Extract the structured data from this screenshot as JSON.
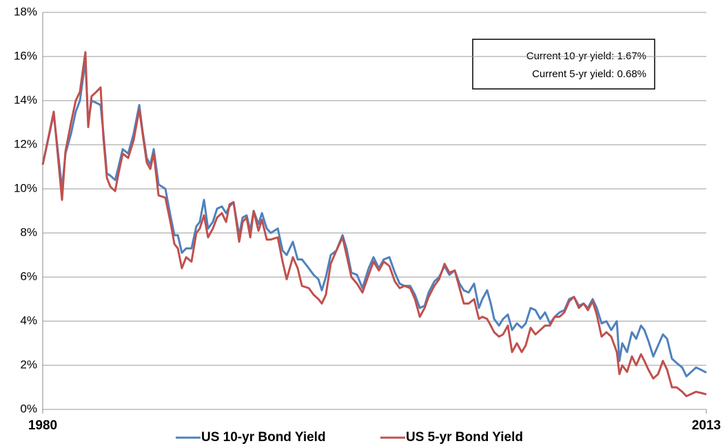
{
  "chart_data": {
    "type": "line",
    "annotations": [
      "Current 10-yr yield: 1.67%",
      "Current 5-yr yield: 0.68%"
    ],
    "xlim": [
      1980,
      2013
    ],
    "xticks": [
      1980,
      2013
    ],
    "ylim": [
      0,
      18
    ],
    "yticks": [
      {
        "value": 0,
        "label": "0%"
      },
      {
        "value": 2,
        "label": "2%"
      },
      {
        "value": 4,
        "label": "4%"
      },
      {
        "value": 6,
        "label": "6%"
      },
      {
        "value": 8,
        "label": "8%"
      },
      {
        "value": 10,
        "label": "10%"
      },
      {
        "value": 12,
        "label": "12%"
      },
      {
        "value": 14,
        "label": "14%"
      },
      {
        "value": 16,
        "label": "16%"
      },
      {
        "value": 18,
        "label": "18%"
      }
    ],
    "grid": true,
    "legend": "bottom",
    "x": [
      1980.0,
      1980.55,
      1980.96,
      1981.13,
      1981.41,
      1981.64,
      1981.85,
      1982.12,
      1982.26,
      1982.43,
      1982.67,
      1982.88,
      1983.02,
      1983.19,
      1983.36,
      1983.6,
      1983.77,
      1983.98,
      1984.25,
      1984.52,
      1984.8,
      1984.97,
      1985.17,
      1985.35,
      1985.52,
      1985.76,
      1986.1,
      1986.37,
      1986.55,
      1986.72,
      1986.92,
      1987.13,
      1987.4,
      1987.64,
      1987.81,
      1988.02,
      1988.22,
      1988.46,
      1988.67,
      1988.91,
      1989.12,
      1989.29,
      1989.49,
      1989.77,
      1989.94,
      1990.14,
      1990.32,
      1990.49,
      1990.73,
      1990.9,
      1991.14,
      1991.34,
      1991.69,
      1991.93,
      1992.13,
      1992.44,
      1992.68,
      1992.89,
      1993.23,
      1993.47,
      1993.71,
      1993.88,
      1994.08,
      1994.32,
      1994.6,
      1994.91,
      1995.11,
      1995.35,
      1995.63,
      1995.9,
      1996.21,
      1996.45,
      1996.72,
      1996.96,
      1997.24,
      1997.51,
      1997.75,
      1997.99,
      1998.27,
      1998.51,
      1998.75,
      1998.99,
      1999.19,
      1999.47,
      1999.71,
      1999.98,
      2000.22,
      2000.49,
      2000.73,
      2000.94,
      2001.18,
      2001.45,
      2001.69,
      2001.86,
      2002.1,
      2002.28,
      2002.45,
      2002.69,
      2002.89,
      2003.13,
      2003.34,
      2003.58,
      2003.82,
      2004.02,
      2004.26,
      2004.5,
      2004.74,
      2004.98,
      2005.22,
      2005.46,
      2005.7,
      2005.94,
      2006.18,
      2006.42,
      2006.66,
      2006.9,
      2007.11,
      2007.35,
      2007.55,
      2007.79,
      2008.03,
      2008.27,
      2008.55,
      2008.68,
      2008.82,
      2009.06,
      2009.3,
      2009.51,
      2009.75,
      2009.92,
      2010.12,
      2010.36,
      2010.6,
      2010.84,
      2011.05,
      2011.29,
      2011.53,
      2011.8,
      2012.01,
      2012.25,
      2012.49,
      2012.73,
      2013.0
    ],
    "series": [
      {
        "name": "US 10-yr Bond Yield",
        "color": "#4f81bd",
        "values": [
          11.1,
          13.4,
          10.0,
          11.6,
          12.5,
          13.5,
          14.0,
          15.8,
          13.0,
          14.0,
          13.9,
          13.8,
          12.5,
          10.7,
          10.6,
          10.4,
          11.0,
          11.8,
          11.6,
          12.5,
          13.8,
          12.6,
          11.4,
          11.1,
          11.8,
          10.2,
          10.0,
          8.7,
          7.9,
          7.9,
          7.1,
          7.3,
          7.3,
          8.3,
          8.5,
          9.5,
          8.2,
          8.5,
          9.1,
          9.2,
          8.9,
          9.2,
          9.4,
          7.9,
          8.7,
          8.8,
          8.1,
          9.0,
          8.4,
          8.9,
          8.2,
          8.0,
          8.2,
          7.2,
          7.0,
          7.6,
          6.8,
          6.8,
          6.4,
          6.1,
          5.9,
          5.4,
          6.0,
          7.0,
          7.2,
          7.9,
          7.3,
          6.2,
          6.1,
          5.5,
          6.4,
          6.9,
          6.4,
          6.8,
          6.9,
          6.2,
          5.7,
          5.6,
          5.6,
          5.2,
          4.6,
          4.7,
          5.3,
          5.8,
          6.0,
          6.5,
          6.1,
          6.3,
          5.7,
          5.4,
          5.3,
          5.7,
          4.6,
          5.0,
          5.4,
          4.8,
          4.1,
          3.8,
          4.1,
          4.3,
          3.6,
          3.9,
          3.7,
          3.9,
          4.6,
          4.5,
          4.1,
          4.4,
          3.9,
          4.2,
          4.4,
          4.5,
          5.0,
          5.1,
          4.7,
          4.8,
          4.6,
          5.0,
          4.6,
          3.9,
          4.0,
          3.6,
          4.0,
          2.2,
          3.0,
          2.6,
          3.5,
          3.2,
          3.8,
          3.6,
          3.1,
          2.4,
          2.9,
          3.4,
          3.2,
          2.3,
          2.1,
          1.9,
          1.5,
          1.7,
          1.9,
          1.8,
          1.67
        ]
      },
      {
        "name": "US 5-yr Bond Yield",
        "color": "#c0504d",
        "values": [
          11.1,
          13.5,
          9.5,
          11.7,
          13.0,
          14.0,
          14.4,
          16.2,
          12.8,
          14.2,
          14.4,
          14.6,
          12.3,
          10.5,
          10.1,
          9.9,
          10.7,
          11.6,
          11.4,
          12.2,
          13.6,
          12.5,
          11.2,
          10.9,
          11.6,
          9.7,
          9.6,
          8.4,
          7.5,
          7.3,
          6.4,
          6.9,
          6.7,
          8.0,
          8.2,
          8.8,
          7.8,
          8.2,
          8.7,
          8.9,
          8.5,
          9.3,
          9.4,
          7.6,
          8.5,
          8.7,
          7.8,
          9.0,
          8.1,
          8.6,
          7.7,
          7.7,
          7.8,
          6.7,
          5.9,
          6.9,
          6.4,
          5.6,
          5.5,
          5.2,
          5.0,
          4.8,
          5.2,
          6.6,
          7.2,
          7.8,
          7.0,
          6.0,
          5.7,
          5.3,
          6.1,
          6.7,
          6.3,
          6.7,
          6.5,
          5.8,
          5.5,
          5.6,
          5.5,
          5.0,
          4.2,
          4.6,
          5.1,
          5.6,
          5.9,
          6.6,
          6.2,
          6.3,
          5.5,
          4.8,
          4.8,
          5.0,
          4.1,
          4.2,
          4.1,
          3.8,
          3.5,
          3.3,
          3.4,
          3.8,
          2.6,
          3.0,
          2.6,
          2.9,
          3.7,
          3.4,
          3.6,
          3.8,
          3.8,
          4.2,
          4.2,
          4.4,
          4.9,
          5.1,
          4.6,
          4.8,
          4.5,
          4.9,
          4.3,
          3.3,
          3.5,
          3.3,
          2.6,
          1.6,
          2.0,
          1.7,
          2.4,
          2.0,
          2.5,
          2.2,
          1.8,
          1.4,
          1.6,
          2.2,
          1.8,
          1.0,
          1.0,
          0.8,
          0.6,
          0.7,
          0.8,
          0.75,
          0.68
        ]
      }
    ]
  }
}
